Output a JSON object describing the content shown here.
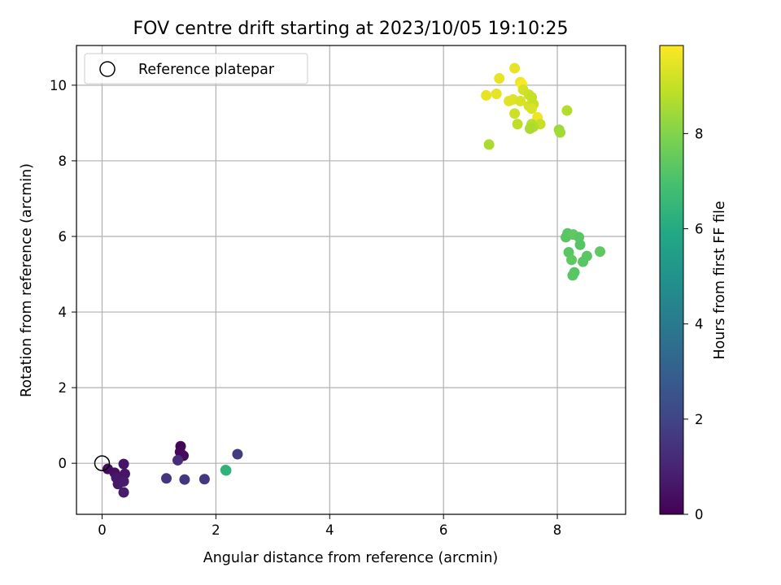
{
  "chart_data": {
    "type": "scatter",
    "title": "FOV centre drift starting at 2023/10/05 19:10:25",
    "xlabel": "Angular distance from reference (arcmin)",
    "ylabel": "Rotation from reference (arcmin)",
    "xlim": [
      -0.45,
      9.2
    ],
    "ylim": [
      -1.35,
      11.05
    ],
    "x_ticks": [
      0,
      2,
      4,
      6,
      8
    ],
    "y_ticks": [
      0,
      2,
      4,
      6,
      8,
      10
    ],
    "grid": true,
    "legend_position": "top-left",
    "reference_marker": {
      "label": "Reference platepar",
      "x": 0,
      "y": 0
    },
    "colorbar": {
      "label": "Hours from first FF file",
      "range": [
        0,
        9.85
      ],
      "ticks": [
        0,
        2,
        4,
        6,
        8
      ],
      "colormap": "viridis"
    },
    "points": [
      {
        "x": 0.1,
        "y": -0.15,
        "c": 0.3
      },
      {
        "x": 0.22,
        "y": -0.25,
        "c": 0.4
      },
      {
        "x": 0.38,
        "y": -0.02,
        "c": 0.5
      },
      {
        "x": 0.4,
        "y": -0.28,
        "c": 0.55
      },
      {
        "x": 0.25,
        "y": -0.38,
        "c": 0.6
      },
      {
        "x": 0.28,
        "y": -0.55,
        "c": 0.65
      },
      {
        "x": 0.38,
        "y": -0.48,
        "c": 0.7
      },
      {
        "x": 0.38,
        "y": -0.77,
        "c": 0.75
      },
      {
        "x": 1.38,
        "y": 0.45,
        "c": 0.1
      },
      {
        "x": 1.37,
        "y": 0.3,
        "c": 0.2
      },
      {
        "x": 1.43,
        "y": 0.2,
        "c": 0.25
      },
      {
        "x": 1.33,
        "y": 0.08,
        "c": 1.3
      },
      {
        "x": 1.13,
        "y": -0.4,
        "c": 1.5
      },
      {
        "x": 1.45,
        "y": -0.43,
        "c": 1.55
      },
      {
        "x": 1.8,
        "y": -0.42,
        "c": 1.6
      },
      {
        "x": 2.38,
        "y": 0.24,
        "c": 1.7
      },
      {
        "x": 2.17,
        "y": -0.18,
        "c": 6.3
      },
      {
        "x": 2.18,
        "y": -0.19,
        "c": 6.35
      },
      {
        "x": 8.18,
        "y": 6.08,
        "c": 7.3
      },
      {
        "x": 8.15,
        "y": 5.98,
        "c": 7.3
      },
      {
        "x": 8.28,
        "y": 6.05,
        "c": 7.4
      },
      {
        "x": 8.38,
        "y": 5.98,
        "c": 7.3
      },
      {
        "x": 8.4,
        "y": 5.78,
        "c": 7.2
      },
      {
        "x": 8.2,
        "y": 5.58,
        "c": 7.3
      },
      {
        "x": 8.25,
        "y": 5.38,
        "c": 7.4
      },
      {
        "x": 8.52,
        "y": 5.48,
        "c": 7.3
      },
      {
        "x": 8.45,
        "y": 5.33,
        "c": 7.3
      },
      {
        "x": 8.75,
        "y": 5.6,
        "c": 7.4
      },
      {
        "x": 8.3,
        "y": 5.05,
        "c": 7.2
      },
      {
        "x": 8.27,
        "y": 4.97,
        "c": 7.3
      },
      {
        "x": 6.8,
        "y": 8.43,
        "c": 8.6
      },
      {
        "x": 6.75,
        "y": 9.73,
        "c": 9.5
      },
      {
        "x": 6.93,
        "y": 9.77,
        "c": 9.5
      },
      {
        "x": 6.98,
        "y": 10.18,
        "c": 9.5
      },
      {
        "x": 7.25,
        "y": 10.45,
        "c": 9.5
      },
      {
        "x": 7.35,
        "y": 10.08,
        "c": 9.6
      },
      {
        "x": 7.38,
        "y": 10.02,
        "c": 9.8
      },
      {
        "x": 7.4,
        "y": 9.88,
        "c": 9.2
      },
      {
        "x": 7.5,
        "y": 9.75,
        "c": 9.1
      },
      {
        "x": 7.55,
        "y": 9.68,
        "c": 9.0
      },
      {
        "x": 7.15,
        "y": 9.58,
        "c": 9.4
      },
      {
        "x": 7.22,
        "y": 9.62,
        "c": 9.4
      },
      {
        "x": 7.35,
        "y": 9.58,
        "c": 9.3
      },
      {
        "x": 7.5,
        "y": 9.45,
        "c": 9.2
      },
      {
        "x": 7.58,
        "y": 9.5,
        "c": 9.0
      },
      {
        "x": 7.55,
        "y": 9.38,
        "c": 9.3
      },
      {
        "x": 7.25,
        "y": 9.25,
        "c": 9.1
      },
      {
        "x": 7.65,
        "y": 9.15,
        "c": 9.6
      },
      {
        "x": 7.3,
        "y": 8.97,
        "c": 8.9
      },
      {
        "x": 7.55,
        "y": 8.97,
        "c": 8.8
      },
      {
        "x": 7.7,
        "y": 8.97,
        "c": 9.0
      },
      {
        "x": 7.58,
        "y": 8.9,
        "c": 8.7
      },
      {
        "x": 7.52,
        "y": 8.85,
        "c": 8.6
      },
      {
        "x": 8.03,
        "y": 8.82,
        "c": 8.4
      },
      {
        "x": 8.05,
        "y": 8.75,
        "c": 8.5
      },
      {
        "x": 8.17,
        "y": 9.33,
        "c": 8.7
      }
    ]
  }
}
